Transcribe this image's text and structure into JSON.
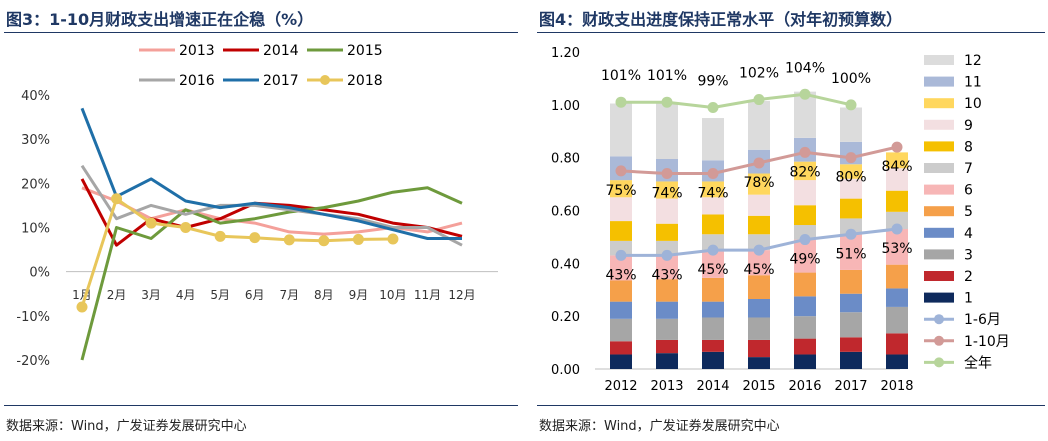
{
  "left": {
    "title": "图3：1-10月财政支出增速正在企稳（%）",
    "source": "数据来源：Wind，广发证券发展研究中心",
    "chart_data": {
      "type": "line",
      "categories": [
        "1月",
        "2月",
        "3月",
        "4月",
        "5月",
        "6月",
        "7月",
        "8月",
        "9月",
        "10月",
        "11月",
        "12月"
      ],
      "ylim": [
        -0.2,
        0.4
      ],
      "yticks": [
        "-20%",
        "-10%",
        "0%",
        "10%",
        "20%",
        "30%",
        "40%"
      ],
      "legend_position": "top",
      "grid": false,
      "series": [
        {
          "name": "2013",
          "color": "#f4a09a",
          "marker": false,
          "values": [
            0.19,
            0.16,
            0.12,
            0.14,
            0.12,
            0.11,
            0.09,
            0.085,
            0.09,
            0.1,
            0.09,
            0.11
          ]
        },
        {
          "name": "2014",
          "color": "#c00000",
          "marker": false,
          "values": [
            0.21,
            0.06,
            0.12,
            0.1,
            0.12,
            0.155,
            0.15,
            0.14,
            0.13,
            0.11,
            0.1,
            0.08
          ]
        },
        {
          "name": "2015",
          "color": "#6e9a3c",
          "marker": false,
          "values": [
            -0.2,
            0.1,
            0.075,
            0.14,
            0.11,
            0.12,
            0.135,
            0.145,
            0.16,
            0.18,
            0.19,
            0.155
          ]
        },
        {
          "name": "2016",
          "color": "#a6a6a6",
          "marker": false,
          "values": [
            0.24,
            0.12,
            0.15,
            0.13,
            0.15,
            0.15,
            0.14,
            0.13,
            0.12,
            0.1,
            0.1,
            0.06
          ]
        },
        {
          "name": "2017",
          "color": "#1f6fa8",
          "marker": false,
          "values": [
            0.37,
            0.17,
            0.21,
            0.16,
            0.145,
            0.155,
            0.145,
            0.13,
            0.115,
            0.095,
            0.075,
            0.075
          ]
        },
        {
          "name": "2018",
          "color": "#e8c65a",
          "marker": true,
          "values": [
            -0.08,
            0.165,
            0.11,
            0.1,
            0.08,
            0.077,
            0.072,
            0.07,
            0.073,
            0.074,
            null,
            null
          ]
        }
      ]
    }
  },
  "right": {
    "title": "图4：财政支出进度保持正常水平（对年初预算数）",
    "source": "数据来源：Wind，广发证券发展研究中心",
    "chart_data": {
      "type": "bar",
      "stacked": true,
      "categories": [
        "2012",
        "2013",
        "2014",
        "2015",
        "2016",
        "2017",
        "2018"
      ],
      "ylim": [
        0,
        1.2
      ],
      "yticks": [
        "0.00",
        "0.20",
        "0.40",
        "0.60",
        "0.80",
        "1.00",
        "1.20"
      ],
      "legend_position": "right",
      "grid": false,
      "series": [
        {
          "name": "1",
          "color": "#0e2a5c",
          "values": [
            0.055,
            0.06,
            0.065,
            0.045,
            0.055,
            0.065,
            0.055
          ]
        },
        {
          "name": "2",
          "color": "#c0282d",
          "values": [
            0.05,
            0.05,
            0.045,
            0.065,
            0.06,
            0.055,
            0.08
          ]
        },
        {
          "name": "3",
          "color": "#a6a6a6",
          "values": [
            0.085,
            0.08,
            0.085,
            0.085,
            0.085,
            0.095,
            0.1
          ]
        },
        {
          "name": "4",
          "color": "#6b8cc7",
          "values": [
            0.065,
            0.065,
            0.06,
            0.07,
            0.075,
            0.07,
            0.07
          ]
        },
        {
          "name": "5",
          "color": "#f5a04a",
          "values": [
            0.08,
            0.085,
            0.09,
            0.09,
            0.09,
            0.09,
            0.09
          ]
        },
        {
          "name": "6",
          "color": "#f7b6b6",
          "values": [
            0.095,
            0.09,
            0.105,
            0.095,
            0.125,
            0.135,
            0.135
          ]
        },
        {
          "name": "7",
          "color": "#cccccc",
          "values": [
            0.055,
            0.055,
            0.06,
            0.06,
            0.055,
            0.06,
            0.065
          ]
        },
        {
          "name": "8",
          "color": "#f5c000",
          "values": [
            0.075,
            0.065,
            0.075,
            0.07,
            0.075,
            0.075,
            0.08
          ]
        },
        {
          "name": "9",
          "color": "#f3dfe1",
          "values": [
            0.09,
            0.095,
            0.065,
            0.08,
            0.095,
            0.075,
            0.085
          ]
        },
        {
          "name": "10",
          "color": "#ffd75e",
          "values": [
            0.065,
            0.065,
            0.06,
            0.08,
            0.07,
            0.055,
            0.06
          ]
        },
        {
          "name": "11",
          "color": "#aab9d8",
          "values": [
            0.09,
            0.085,
            0.08,
            0.09,
            0.09,
            0.085,
            null
          ]
        },
        {
          "name": "12",
          "color": "#dcdcdc",
          "values": [
            0.2,
            0.215,
            0.16,
            0.185,
            0.175,
            0.13,
            null
          ]
        }
      ],
      "lines": [
        {
          "name": "1-6月",
          "color": "#9eb3d8",
          "values": [
            0.43,
            0.43,
            0.45,
            0.45,
            0.49,
            0.51,
            0.53
          ],
          "labels": [
            "43%",
            "43%",
            "45%",
            "45%",
            "49%",
            "51%",
            "53%"
          ]
        },
        {
          "name": "1-10月",
          "color": "#d29a97",
          "values": [
            0.75,
            0.74,
            0.74,
            0.78,
            0.82,
            0.8,
            0.84
          ],
          "labels": [
            "75%",
            "74%",
            "74%",
            "78%",
            "82%",
            "80%",
            "84%"
          ]
        },
        {
          "name": "全年",
          "color": "#b7d59b",
          "values": [
            1.01,
            1.01,
            0.99,
            1.02,
            1.04,
            1.0,
            null
          ],
          "labels": [
            "101%",
            "101%",
            "99%",
            "102%",
            "104%",
            "100%",
            ""
          ]
        }
      ]
    }
  }
}
